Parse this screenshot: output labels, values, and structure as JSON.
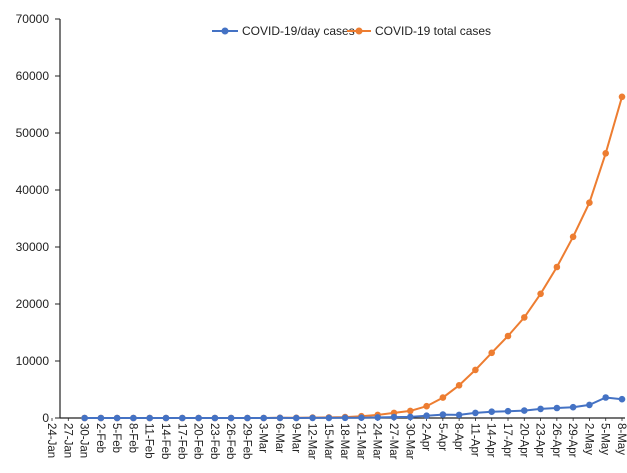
{
  "chart_data": {
    "type": "line",
    "title": "",
    "xlabel": "",
    "ylabel": "",
    "ylim": [
      0,
      70000
    ],
    "y_ticks": [
      "0",
      "10000",
      "20000",
      "30000",
      "40000",
      "50000",
      "60000",
      "70000"
    ],
    "x_tick_labels": [
      "24-Jan",
      "27-Jan",
      "30-Jan",
      "2-Feb",
      "5-Feb",
      "8-Feb",
      "11-Feb",
      "14-Feb",
      "17-Feb",
      "20-Feb",
      "23-Feb",
      "26-Feb",
      "29-Feb",
      "3-Mar",
      "6-Mar",
      "9-Mar",
      "12-Mar",
      "15-Mar",
      "18-Mar",
      "21-Mar",
      "24-Mar",
      "27-Mar",
      "30-Mar",
      "2-Apr",
      "5-Apr",
      "8-Apr",
      "11-Apr",
      "14-Apr",
      "17-Apr",
      "20-Apr",
      "23-Apr",
      "26-Apr",
      "29-Apr",
      "2-May",
      "5-May",
      "8-May"
    ],
    "grid": false,
    "legend_position": "top",
    "series": [
      {
        "name": "COVID-19/day cases",
        "color": "#4472C4",
        "marker": "circle",
        "x": [
          "30-Jan",
          "2-Feb",
          "5-Feb",
          "8-Feb",
          "11-Feb",
          "14-Feb",
          "17-Feb",
          "20-Feb",
          "23-Feb",
          "26-Feb",
          "29-Feb",
          "3-Mar",
          "6-Mar",
          "9-Mar",
          "12-Mar",
          "15-Mar",
          "18-Mar",
          "21-Mar",
          "24-Mar",
          "27-Mar",
          "30-Mar",
          "2-Apr",
          "5-Apr",
          "8-Apr",
          "11-Apr",
          "14-Apr",
          "17-Apr",
          "20-Apr",
          "23-Apr",
          "26-Apr",
          "29-Apr",
          "2-May",
          "5-May",
          "8-May"
        ],
        "values": [
          1,
          0,
          0,
          0,
          0,
          0,
          0,
          0,
          0,
          0,
          0,
          3,
          25,
          5,
          15,
          25,
          30,
          60,
          100,
          150,
          200,
          400,
          600,
          550,
          900,
          1100,
          1200,
          1300,
          1600,
          1750,
          1900,
          2300,
          3600,
          3300
        ]
      },
      {
        "name": "COVID-19 total cases",
        "color": "#ED7D31",
        "marker": "circle",
        "x": [
          "30-Jan",
          "2-Feb",
          "5-Feb",
          "8-Feb",
          "11-Feb",
          "14-Feb",
          "17-Feb",
          "20-Feb",
          "23-Feb",
          "26-Feb",
          "29-Feb",
          "3-Mar",
          "6-Mar",
          "9-Mar",
          "12-Mar",
          "15-Mar",
          "18-Mar",
          "21-Mar",
          "24-Mar",
          "27-Mar",
          "30-Mar",
          "2-Apr",
          "5-Apr",
          "8-Apr",
          "11-Apr",
          "14-Apr",
          "17-Apr",
          "20-Apr",
          "23-Apr",
          "26-Apr",
          "29-Apr",
          "2-May",
          "5-May",
          "8-May"
        ],
        "values": [
          1,
          3,
          3,
          3,
          3,
          3,
          3,
          3,
          3,
          3,
          3,
          5,
          30,
          43,
          74,
          110,
          151,
          315,
          536,
          887,
          1251,
          2069,
          3577,
          5734,
          8446,
          11439,
          14378,
          17656,
          21797,
          26496,
          31787,
          37776,
          46433,
          56351
        ]
      }
    ]
  }
}
